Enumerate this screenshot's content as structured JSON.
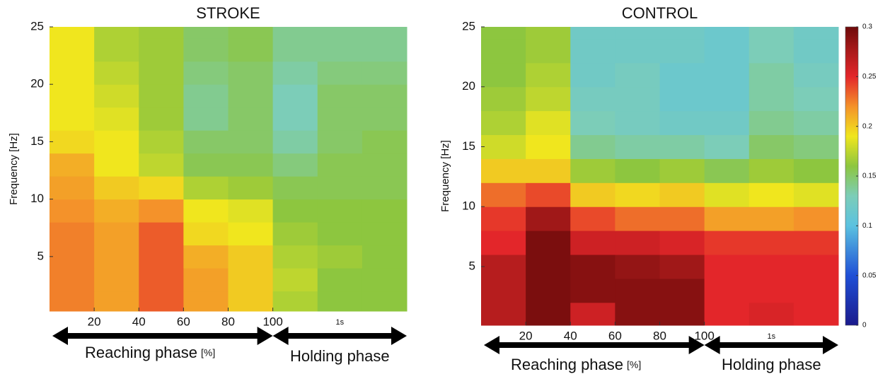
{
  "chart_data": [
    {
      "type": "heatmap",
      "title": "STROKE",
      "ylabel": "Frequency [Hz]",
      "categories": [
        null,
        null,
        null,
        null,
        null,
        null,
        null,
        null
      ],
      "y_edges": [
        0.25,
        2,
        4,
        6,
        8,
        10,
        12,
        14,
        16,
        18,
        20,
        22,
        24,
        25
      ],
      "ylim": [
        0.25,
        25
      ],
      "yticks": [
        5,
        10,
        15,
        20,
        25
      ],
      "xticks": [
        {
          "value": 1,
          "label": "20"
        },
        {
          "value": 2,
          "label": "40"
        },
        {
          "value": 3,
          "label": "60"
        },
        {
          "value": 4,
          "label": "80"
        },
        {
          "value": 5,
          "label": "100"
        }
      ],
      "annotations": {
        "reaching": "Reaching phase",
        "unit": "[%]",
        "holding": "Holding phase",
        "holding_tick": "1s"
      },
      "clim": [
        0,
        0.3
      ],
      "colorscale": [
        {
          "value": 0,
          "color": "#1a1a8c"
        },
        {
          "value": 0.05,
          "color": "#1f4fd6"
        },
        {
          "value": 0.1,
          "color": "#5bc2e0"
        },
        {
          "value": 0.13,
          "color": "#7ccdb8"
        },
        {
          "value": 0.16,
          "color": "#8dc63f"
        },
        {
          "value": 0.19,
          "color": "#f0e61e"
        },
        {
          "value": 0.22,
          "color": "#f4922a"
        },
        {
          "value": 0.25,
          "color": "#e3262a"
        },
        {
          "value": 0.28,
          "color": "#a01818"
        },
        {
          "value": 0.3,
          "color": "#6e0a0a"
        }
      ],
      "z": [
        [
          0.225,
          0.215,
          0.235,
          0.215,
          0.2,
          0.17,
          0.16,
          0.16
        ],
        [
          0.225,
          0.215,
          0.235,
          0.215,
          0.2,
          0.175,
          0.16,
          0.16
        ],
        [
          0.225,
          0.215,
          0.235,
          0.21,
          0.2,
          0.17,
          0.165,
          0.16
        ],
        [
          0.225,
          0.215,
          0.235,
          0.195,
          0.19,
          0.165,
          0.16,
          0.16
        ],
        [
          0.22,
          0.21,
          0.22,
          0.19,
          0.185,
          0.16,
          0.16,
          0.16
        ],
        [
          0.215,
          0.2,
          0.195,
          0.17,
          0.165,
          0.155,
          0.155,
          0.155
        ],
        [
          0.21,
          0.19,
          0.175,
          0.155,
          0.155,
          0.145,
          0.155,
          0.155
        ],
        [
          0.195,
          0.19,
          0.17,
          0.15,
          0.15,
          0.135,
          0.15,
          0.155
        ],
        [
          0.19,
          0.185,
          0.165,
          0.14,
          0.15,
          0.13,
          0.15,
          0.15
        ],
        [
          0.19,
          0.18,
          0.165,
          0.14,
          0.15,
          0.13,
          0.15,
          0.15
        ],
        [
          0.19,
          0.175,
          0.165,
          0.145,
          0.15,
          0.135,
          0.145,
          0.145
        ],
        [
          0.19,
          0.17,
          0.165,
          0.15,
          0.155,
          0.14,
          0.14,
          0.14
        ],
        [
          0.19,
          0.17,
          0.165,
          0.15,
          0.155,
          0.14,
          0.14,
          0.14
        ]
      ]
    },
    {
      "type": "heatmap",
      "title": "CONTROL",
      "ylabel": "Frequency [Hz]",
      "categories": [
        null,
        null,
        null,
        null,
        null,
        null,
        null,
        null
      ],
      "y_edges": [
        0.1,
        2,
        4,
        6,
        8,
        10,
        12,
        14,
        16,
        18,
        20,
        22,
        24,
        25
      ],
      "ylim": [
        0.1,
        25
      ],
      "yticks": [
        5,
        10,
        15,
        20,
        25
      ],
      "xticks": [
        {
          "value": 1,
          "label": "20"
        },
        {
          "value": 2,
          "label": "40"
        },
        {
          "value": 3,
          "label": "60"
        },
        {
          "value": 4,
          "label": "80"
        },
        {
          "value": 5,
          "label": "100"
        }
      ],
      "annotations": {
        "reaching": "Reaching phase",
        "unit": "[%]",
        "holding": "Holding phase",
        "holding_tick": "1s"
      },
      "clim": [
        0,
        0.3
      ],
      "cticks": [
        0,
        0.05,
        0.1,
        0.15,
        0.2,
        0.25,
        0.3
      ],
      "colorbar": true,
      "colorscale": [
        {
          "value": 0,
          "color": "#1a1a8c"
        },
        {
          "value": 0.05,
          "color": "#1f4fd6"
        },
        {
          "value": 0.1,
          "color": "#5bc2e0"
        },
        {
          "value": 0.13,
          "color": "#7ccdb8"
        },
        {
          "value": 0.16,
          "color": "#8dc63f"
        },
        {
          "value": 0.19,
          "color": "#f0e61e"
        },
        {
          "value": 0.22,
          "color": "#f4922a"
        },
        {
          "value": 0.25,
          "color": "#e3262a"
        },
        {
          "value": 0.28,
          "color": "#a01818"
        },
        {
          "value": 0.3,
          "color": "#6e0a0a"
        }
      ],
      "z": [
        [
          0.27,
          0.295,
          0.26,
          0.29,
          0.29,
          0.25,
          0.255,
          0.25
        ],
        [
          0.27,
          0.295,
          0.29,
          0.29,
          0.29,
          0.25,
          0.25,
          0.25
        ],
        [
          0.27,
          0.295,
          0.29,
          0.285,
          0.28,
          0.25,
          0.25,
          0.25
        ],
        [
          0.25,
          0.295,
          0.26,
          0.26,
          0.255,
          0.245,
          0.245,
          0.245
        ],
        [
          0.245,
          0.28,
          0.24,
          0.23,
          0.23,
          0.215,
          0.215,
          0.22
        ],
        [
          0.23,
          0.24,
          0.2,
          0.195,
          0.2,
          0.185,
          0.19,
          0.185
        ],
        [
          0.2,
          0.2,
          0.165,
          0.16,
          0.165,
          0.155,
          0.165,
          0.16
        ],
        [
          0.18,
          0.19,
          0.14,
          0.135,
          0.135,
          0.13,
          0.15,
          0.145
        ],
        [
          0.17,
          0.185,
          0.13,
          0.125,
          0.12,
          0.12,
          0.14,
          0.135
        ],
        [
          0.165,
          0.175,
          0.125,
          0.125,
          0.115,
          0.115,
          0.135,
          0.13
        ],
        [
          0.16,
          0.17,
          0.12,
          0.125,
          0.115,
          0.115,
          0.135,
          0.125
        ],
        [
          0.16,
          0.165,
          0.12,
          0.12,
          0.12,
          0.115,
          0.13,
          0.12
        ],
        [
          0.16,
          0.165,
          0.12,
          0.12,
          0.12,
          0.115,
          0.13,
          0.12
        ]
      ]
    }
  ]
}
